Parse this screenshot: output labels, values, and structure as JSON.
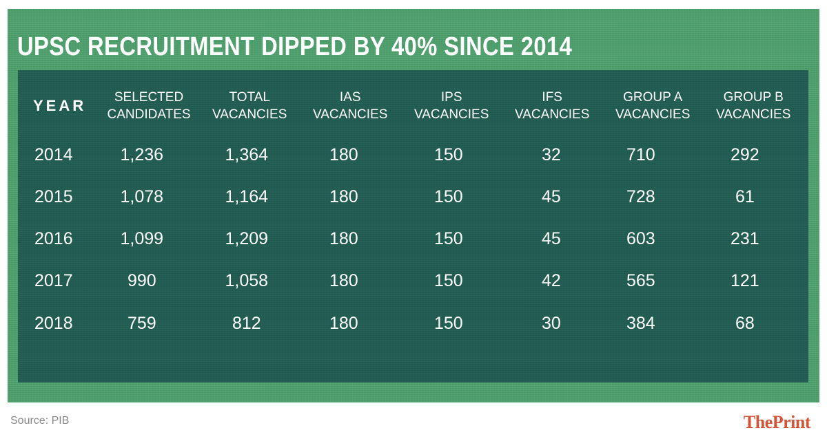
{
  "title": "UPSC RECRUITMENT DIPPED BY 40% SINCE 2014",
  "source": "Source: PIB",
  "brand": "ThePrint",
  "colors": {
    "frame": "#4aa06a",
    "panel": "#1d5a4f",
    "text": "#ffffff",
    "brand": "#d2553a"
  },
  "headers": {
    "year": "YEAR",
    "cols": [
      [
        "SELECTED",
        "CANDIDATES"
      ],
      [
        "TOTAL",
        "VACANCIES"
      ],
      [
        "IAS",
        "VACANCIES"
      ],
      [
        "IPS",
        "VACANCIES"
      ],
      [
        "IFS",
        "VACANCIES"
      ],
      [
        "GROUP A",
        "VACANCIES"
      ],
      [
        "GROUP B",
        "VACANCIES"
      ]
    ]
  },
  "rows": [
    [
      "2014",
      "1,236",
      "1,364",
      "180",
      "150",
      "32",
      "710",
      "292"
    ],
    [
      "2015",
      "1,078",
      "1,164",
      "180",
      "150",
      "45",
      "728",
      "61"
    ],
    [
      "2016",
      "1,099",
      "1,209",
      "180",
      "150",
      "45",
      "603",
      "231"
    ],
    [
      "2017",
      "990",
      "1,058",
      "180",
      "150",
      "42",
      "565",
      "121"
    ],
    [
      "2018",
      "759",
      "812",
      "180",
      "150",
      "30",
      "384",
      "68"
    ]
  ],
  "chart_data": {
    "type": "table",
    "title": "UPSC RECRUITMENT DIPPED BY 40% SINCE 2014",
    "columns": [
      "YEAR",
      "SELECTED CANDIDATES",
      "TOTAL VACANCIES",
      "IAS VACANCIES",
      "IPS VACANCIES",
      "IFS VACANCIES",
      "GROUP A VACANCIES",
      "GROUP B VACANCIES"
    ],
    "rows": [
      [
        2014,
        1236,
        1364,
        180,
        150,
        32,
        710,
        292
      ],
      [
        2015,
        1078,
        1164,
        180,
        150,
        45,
        728,
        61
      ],
      [
        2016,
        1099,
        1209,
        180,
        150,
        45,
        603,
        231
      ],
      [
        2017,
        990,
        1058,
        180,
        150,
        42,
        565,
        121
      ],
      [
        2018,
        759,
        812,
        180,
        150,
        30,
        384,
        68
      ]
    ]
  }
}
